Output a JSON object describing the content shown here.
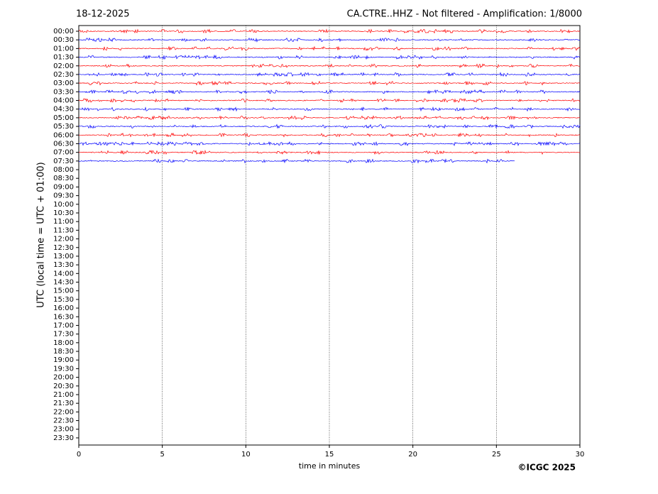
{
  "chart_data": {
    "type": "helicorder",
    "date": "18-12-2025",
    "title": "CA.CTRE..HHZ - Not filtered - Amplification: 1/8000",
    "ylabel": "UTC (local time = UTC + 01:00)",
    "xlabel": "time in minutes",
    "copyright": "©ICGC 2025",
    "rows": [
      "00:00",
      "00:30",
      "01:00",
      "01:30",
      "02:00",
      "02:30",
      "03:00",
      "03:30",
      "04:00",
      "04:30",
      "05:00",
      "05:30",
      "06:00",
      "06:30",
      "07:00",
      "07:30",
      "08:00",
      "08:30",
      "09:00",
      "09:30",
      "10:00",
      "10:30",
      "11:00",
      "11:30",
      "12:00",
      "12:30",
      "13:00",
      "13:30",
      "14:00",
      "14:30",
      "15:00",
      "15:30",
      "16:00",
      "16:30",
      "17:00",
      "17:30",
      "18:00",
      "18:30",
      "19:00",
      "19:30",
      "20:00",
      "20:30",
      "21:00",
      "21:30",
      "22:00",
      "22:30",
      "23:00",
      "23:30"
    ],
    "trace_end": [
      30,
      30,
      30,
      30,
      30,
      30,
      30,
      30,
      30,
      30,
      30,
      30,
      30,
      30,
      30,
      26.1
    ],
    "trace_colors": [
      "#ff0000",
      "#0000ff",
      "#ff0000",
      "#0000ff",
      "#ff0000",
      "#0000ff",
      "#ff0000",
      "#0000ff",
      "#ff0000",
      "#0000ff",
      "#ff0000",
      "#0000ff",
      "#ff0000",
      "#0000ff",
      "#ff0000",
      "#0000ff"
    ],
    "xlim": [
      0,
      30
    ],
    "xticks": [
      0,
      5,
      10,
      15,
      20,
      25,
      30
    ],
    "grid": true
  }
}
